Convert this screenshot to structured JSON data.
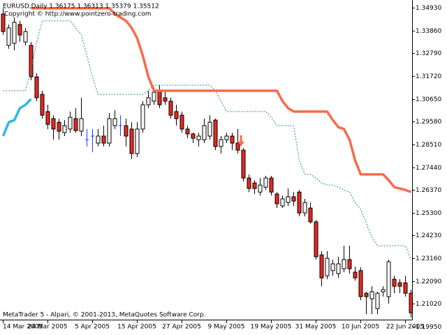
{
  "chart_data": {
    "type": "candlestick",
    "header": "EURUSD,Daily  1.36175 1.36313 1.35379 1.35512",
    "copyright": "Copyright © http://www.pointzero-trading.com",
    "footer": "MetaTrader 5 - Alpari, © 2001-2013, MetaQuotes Software Corp.",
    "categories": [
      "14 Mar 2005",
      null,
      null,
      null,
      null,
      null,
      null,
      null,
      "24 Mar 2005",
      null,
      null,
      null,
      null,
      null,
      null,
      null,
      "5 Apr 2005",
      null,
      null,
      null,
      null,
      null,
      null,
      null,
      "15 Apr 2005",
      null,
      null,
      null,
      null,
      null,
      null,
      null,
      "27 Apr 2005",
      null,
      null,
      null,
      null,
      null,
      null,
      null,
      "9 May 2005",
      null,
      null,
      null,
      null,
      null,
      null,
      null,
      "19 May 2005",
      null,
      null,
      null,
      null,
      null,
      null,
      null,
      "31 May 2005",
      null,
      null,
      null,
      null,
      null,
      null,
      null,
      "10 Jun 2005",
      null,
      null,
      null,
      null,
      null,
      null,
      null,
      "22 Jun 2005",
      null
    ],
    "open": [
      1.3463,
      1.3316,
      1.3326,
      1.3414,
      1.3332,
      1.3316,
      1.3168,
      1.3086,
      1.3005,
      1.2972,
      1.2955,
      1.2906,
      1.2923,
      1.2972,
      1.2913,
      1.2873,
      1.289,
      1.2857,
      1.289,
      1.2857,
      1.2939,
      1.2939,
      1.2939,
      1.2923,
      1.2808,
      1.2923,
      1.3037,
      1.3054,
      1.3103,
      1.307,
      1.3054,
      1.3005,
      1.2988,
      1.2923,
      1.29,
      1.2873,
      1.2873,
      1.289,
      1.2965,
      1.2841,
      1.2873,
      1.289,
      1.2857,
      1.2824,
      1.2693,
      1.267,
      1.2627,
      1.265,
      1.2693,
      1.2618,
      1.2562,
      1.2578,
      1.2605,
      1.2627,
      1.2529,
      1.2552,
      1.2487,
      1.2332,
      1.2234,
      1.2258,
      1.2244,
      1.2267,
      1.231,
      1.2251,
      1.2258,
      1.2152,
      1.2126,
      1.208,
      1.2159,
      1.2136,
      1.2218,
      1.2201,
      1.2201,
      1.2152
    ],
    "high": [
      1.349,
      1.3414,
      1.3447,
      1.3431,
      1.3398,
      1.3332,
      1.3185,
      1.3103,
      1.3037,
      1.2988,
      1.2972,
      1.2965,
      1.3005,
      1.3021,
      1.307,
      1.2923,
      1.2923,
      1.2923,
      1.2939,
      1.2998,
      1.3011,
      1.2988,
      1.2972,
      1.2955,
      1.2955,
      1.3054,
      1.3103,
      1.3119,
      1.3129,
      1.3103,
      1.307,
      1.3037,
      1.3005,
      1.2939,
      1.2906,
      1.2906,
      1.2972,
      1.2988,
      1.2972,
      1.289,
      1.2906,
      1.2906,
      1.2923,
      1.2834,
      1.271,
      1.2683,
      1.2693,
      1.2703,
      1.2703,
      1.2627,
      1.2611,
      1.2644,
      1.2627,
      1.2637,
      1.2595,
      1.2578,
      1.2496,
      1.2349,
      1.2349,
      1.231,
      1.2323,
      1.2375,
      1.2375,
      1.2277,
      1.2274,
      1.2159,
      1.2185,
      1.2159,
      1.2185,
      1.231,
      1.2234,
      1.2218,
      1.2234,
      1.2169
    ],
    "low": [
      1.3365,
      1.33,
      1.3293,
      1.3332,
      1.3316,
      1.3152,
      1.3054,
      1.2972,
      1.2923,
      1.2873,
      1.2873,
      1.289,
      1.2906,
      1.2906,
      1.289,
      1.2841,
      1.2814,
      1.2841,
      1.2841,
      1.2841,
      1.2923,
      1.289,
      1.2841,
      1.2782,
      1.2791,
      1.2906,
      1.3021,
      1.3037,
      1.3021,
      1.3037,
      1.2972,
      1.2939,
      1.2906,
      1.288,
      1.2857,
      1.2841,
      1.2857,
      1.2873,
      1.2824,
      1.2808,
      1.2857,
      1.2824,
      1.2808,
      1.2677,
      1.2627,
      1.2618,
      1.2611,
      1.2637,
      1.2611,
      1.2552,
      1.2552,
      1.2562,
      1.2562,
      1.2513,
      1.2513,
      1.248,
      1.231,
      1.2185,
      1.2218,
      1.2234,
      1.2224,
      1.2251,
      1.2244,
      1.2211,
      1.2119,
      1.2054,
      1.2054,
      1.2054,
      1.2136,
      1.2103,
      1.2152,
      1.2152,
      1.2136,
      1.2038
    ],
    "close": [
      1.3381,
      1.3398,
      1.3424,
      1.3365,
      1.3381,
      1.3168,
      1.307,
      1.2988,
      1.2945,
      1.2923,
      1.2913,
      1.2939,
      1.2978,
      1.2916,
      1.2972,
      1.2873,
      1.289,
      1.289,
      1.2857,
      1.2972,
      1.2972,
      1.2939,
      1.289,
      1.2808,
      1.2923,
      1.3037,
      1.307,
      1.3096,
      1.3037,
      1.3054,
      1.2988,
      1.2972,
      1.2923,
      1.29,
      1.288,
      1.289,
      1.2939,
      1.2955,
      1.2841,
      1.2873,
      1.289,
      1.2857,
      1.2824,
      1.2693,
      1.2644,
      1.2644,
      1.266,
      1.2693,
      1.2627,
      1.2572,
      1.2595,
      1.2605,
      1.2585,
      1.2529,
      1.2578,
      1.2487,
      1.2323,
      1.2224,
      1.2316,
      1.229,
      1.229,
      1.231,
      1.2267,
      1.2224,
      1.2136,
      1.2136,
      1.2159,
      1.2152,
      1.2169,
      1.23,
      1.2185,
      1.2185,
      1.2152,
      1.206
    ],
    "up_color": "#ffffff",
    "down_color": "#e8281e",
    "doji_color": "#1f3cff",
    "wick_color": "#000000",
    "ylim": [
      1.2028,
      1.3529
    ],
    "yticks": [
      {
        "value": 1.3493,
        "label": "1.34930"
      },
      {
        "value": 1.3386,
        "label": "1.33860"
      },
      {
        "value": 1.3279,
        "label": "1.32790"
      },
      {
        "value": 1.3172,
        "label": "1.31720"
      },
      {
        "value": 1.3065,
        "label": "1.30650"
      },
      {
        "value": 1.2958,
        "label": "1.29580"
      },
      {
        "value": 1.2851,
        "label": "1.28510"
      },
      {
        "value": 1.2744,
        "label": "1.27440"
      },
      {
        "value": 1.2637,
        "label": "1.26370"
      },
      {
        "value": 1.253,
        "label": "1.25300"
      },
      {
        "value": 1.2423,
        "label": "1.24230"
      },
      {
        "value": 1.2316,
        "label": "1.23160"
      },
      {
        "value": 1.2209,
        "label": "1.22090"
      },
      {
        "value": 1.2102,
        "label": "1.21020"
      },
      {
        "value": 1.1995,
        "label": "1.19950"
      }
    ],
    "overlays": [
      {
        "style": "dotted",
        "color": "#1e8b96",
        "values": [
          1.3103,
          1.3103,
          1.3103,
          1.3103,
          1.3103,
          1.3201,
          1.3332,
          1.3431,
          1.3431,
          1.3431,
          1.3431,
          1.3431,
          1.3431,
          1.3398,
          1.3365,
          1.3267,
          1.3168,
          1.3086,
          1.3086,
          1.3086,
          1.3086,
          1.3086,
          1.3086,
          1.3086,
          1.3086,
          1.3086,
          1.3103,
          1.3129,
          1.3129,
          1.3129,
          1.3129,
          1.3129,
          1.3129,
          1.3129,
          1.3129,
          1.3129,
          1.3129,
          1.3129,
          1.3103,
          1.3054,
          1.3005,
          1.3005,
          1.3005,
          1.3005,
          1.3005,
          1.3005,
          1.3005,
          1.3005,
          1.2978,
          1.2939,
          1.2939,
          1.2939,
          1.2939,
          1.2775,
          1.271,
          1.271,
          1.2693,
          1.267,
          1.266,
          1.266,
          1.265,
          1.2637,
          1.2627,
          1.2578,
          1.2546,
          1.248,
          1.2414,
          1.2375,
          1.2375,
          1.2375,
          1.2375,
          1.2375,
          1.2375,
          1.231
        ]
      },
      {
        "style": "thick",
        "color": "#33b5e5",
        "values": [
          1.289,
          1.2955,
          1.2965,
          1.3021,
          1.3037,
          1.3064,
          null,
          null,
          null,
          null,
          null,
          null,
          null,
          null,
          null,
          null,
          null,
          null,
          null,
          null,
          null,
          null,
          null,
          null,
          null,
          null,
          null,
          null,
          null,
          null,
          null,
          null,
          null,
          null,
          null,
          null,
          null,
          null,
          null,
          null,
          null,
          null,
          null,
          null,
          null,
          null,
          null,
          null,
          null,
          null,
          null,
          null,
          null,
          null,
          null,
          null,
          null,
          null,
          null,
          null,
          null,
          null,
          null,
          null,
          null,
          null,
          null,
          null,
          null,
          null,
          null,
          null,
          null,
          null
        ]
      },
      {
        "style": "thick",
        "color": "#fa6a4a",
        "values": [
          null,
          null,
          null,
          null,
          null,
          1.349,
          1.349,
          1.349,
          1.349,
          1.349,
          1.349,
          1.349,
          1.349,
          1.349,
          1.349,
          1.349,
          1.349,
          1.349,
          1.349,
          1.349,
          1.3463,
          1.3447,
          1.3431,
          1.3398,
          1.3349,
          1.3267,
          1.3168,
          1.3103,
          1.3103,
          1.3103,
          1.3103,
          1.3103,
          1.3103,
          1.3103,
          1.3103,
          1.3103,
          1.3103,
          1.3103,
          1.3103,
          1.3103,
          1.3103,
          1.3103,
          1.3103,
          1.3103,
          1.3103,
          1.3103,
          1.3103,
          1.3103,
          1.3103,
          1.3103,
          1.3054,
          1.3021,
          1.3005,
          1.3005,
          1.3005,
          1.3005,
          1.3005,
          1.3005,
          1.3005,
          1.2965,
          1.2932,
          1.2923,
          1.2873,
          1.2775,
          1.271,
          1.271,
          1.271,
          1.271,
          1.271,
          1.2683,
          1.265,
          1.2644,
          1.2637,
          1.2627
        ]
      },
      {
        "style": "arrow",
        "color": "#fa6a4a",
        "values": [
          null,
          null,
          null,
          null,
          null,
          null,
          null,
          null,
          null,
          null,
          null,
          null,
          null,
          null,
          null,
          null,
          null,
          null,
          null,
          null,
          null,
          null,
          null,
          null,
          null,
          null,
          null,
          null,
          null,
          null,
          null,
          null,
          null,
          null,
          null,
          null,
          null,
          null,
          null,
          null,
          null,
          null,
          1.2841,
          null,
          null,
          null,
          null,
          null,
          null,
          null,
          null,
          null,
          null,
          null,
          null,
          null,
          null,
          null,
          null,
          null,
          null,
          null,
          null,
          null,
          null,
          null,
          null,
          null,
          null,
          null,
          null,
          null,
          null,
          null
        ]
      }
    ]
  }
}
